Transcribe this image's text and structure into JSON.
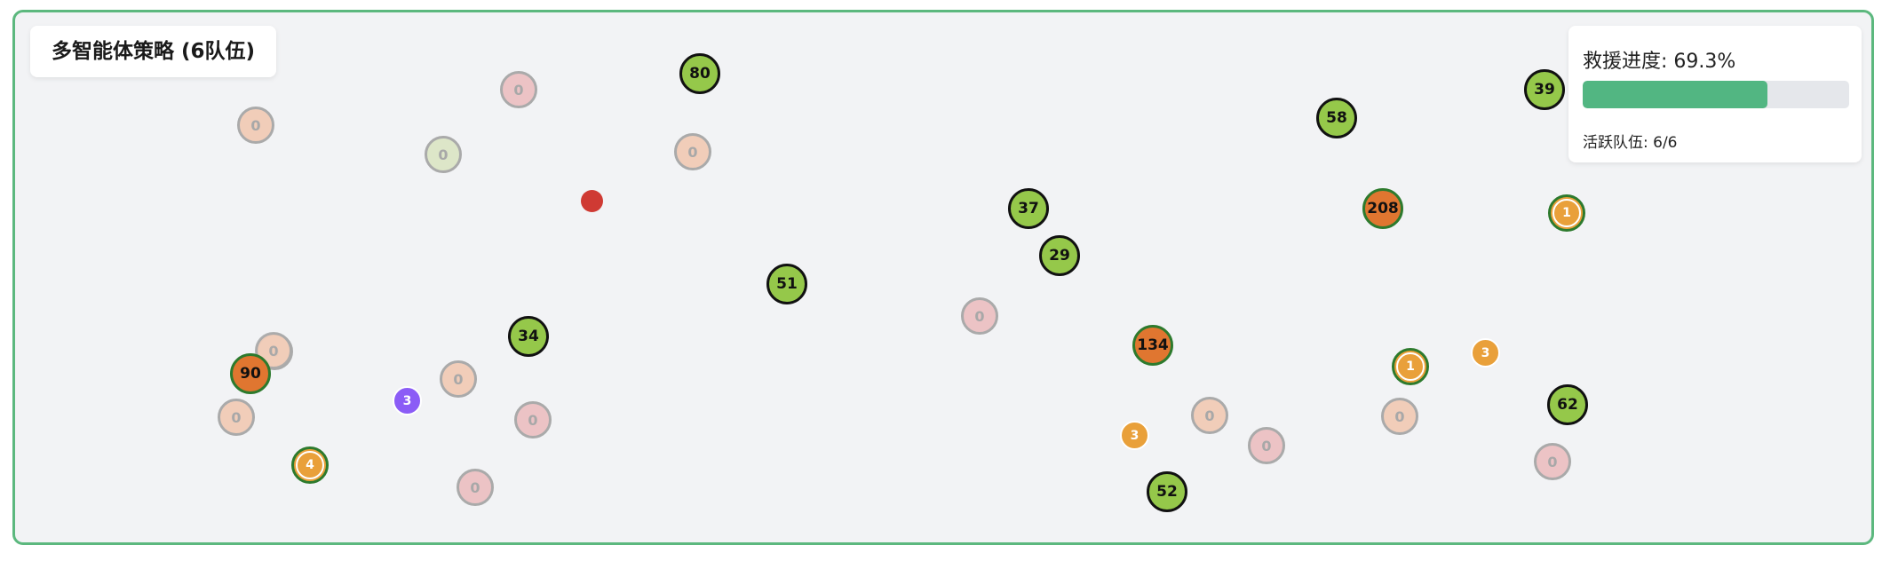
{
  "title": "多智能体策略 (6队伍)",
  "progress": {
    "label": "救援进度: 69.3%",
    "value_percent": 69.3,
    "fill_color": "#52b682"
  },
  "teams_label": "活跃队伍: 6/6",
  "colors": {
    "frame_border": "#5cb87e",
    "empty_peach": "#f1cdb9",
    "empty_pink": "#ecc3c5",
    "empty_pale_green": "#dde6c8",
    "victim_green": "#95c84a",
    "victim_orange": "#e07630",
    "team_orange": "#e9a03a",
    "team_purple": "#8b5cf6",
    "hazard_red": "#cf3a33"
  },
  "nodes": [
    {
      "label": "0"
    },
    {
      "label": "0"
    },
    {
      "label": "0"
    },
    {
      "label": "0"
    },
    {
      "label": "0"
    },
    {
      "label": "0"
    },
    {
      "label": "0"
    },
    {
      "label": "0"
    },
    {
      "label": "0"
    },
    {
      "label": "0"
    },
    {
      "label": "0"
    },
    {
      "label": "0"
    },
    {
      "label": "0"
    },
    {
      "label": "0"
    },
    {
      "label": "0"
    },
    {
      "label": "80"
    },
    {
      "label": "51"
    },
    {
      "label": "34"
    },
    {
      "label": "37"
    },
    {
      "label": "29"
    },
    {
      "label": "58"
    },
    {
      "label": "39"
    },
    {
      "label": "62"
    },
    {
      "label": "52"
    },
    {
      "label": "208"
    },
    {
      "label": "134"
    },
    {
      "label": "90"
    },
    {
      "label": "1"
    },
    {
      "label": "1"
    },
    {
      "label": "4"
    },
    {
      "label": "3"
    },
    {
      "label": "3"
    },
    {
      "label": "3"
    },
    {
      "label": ""
    }
  ]
}
